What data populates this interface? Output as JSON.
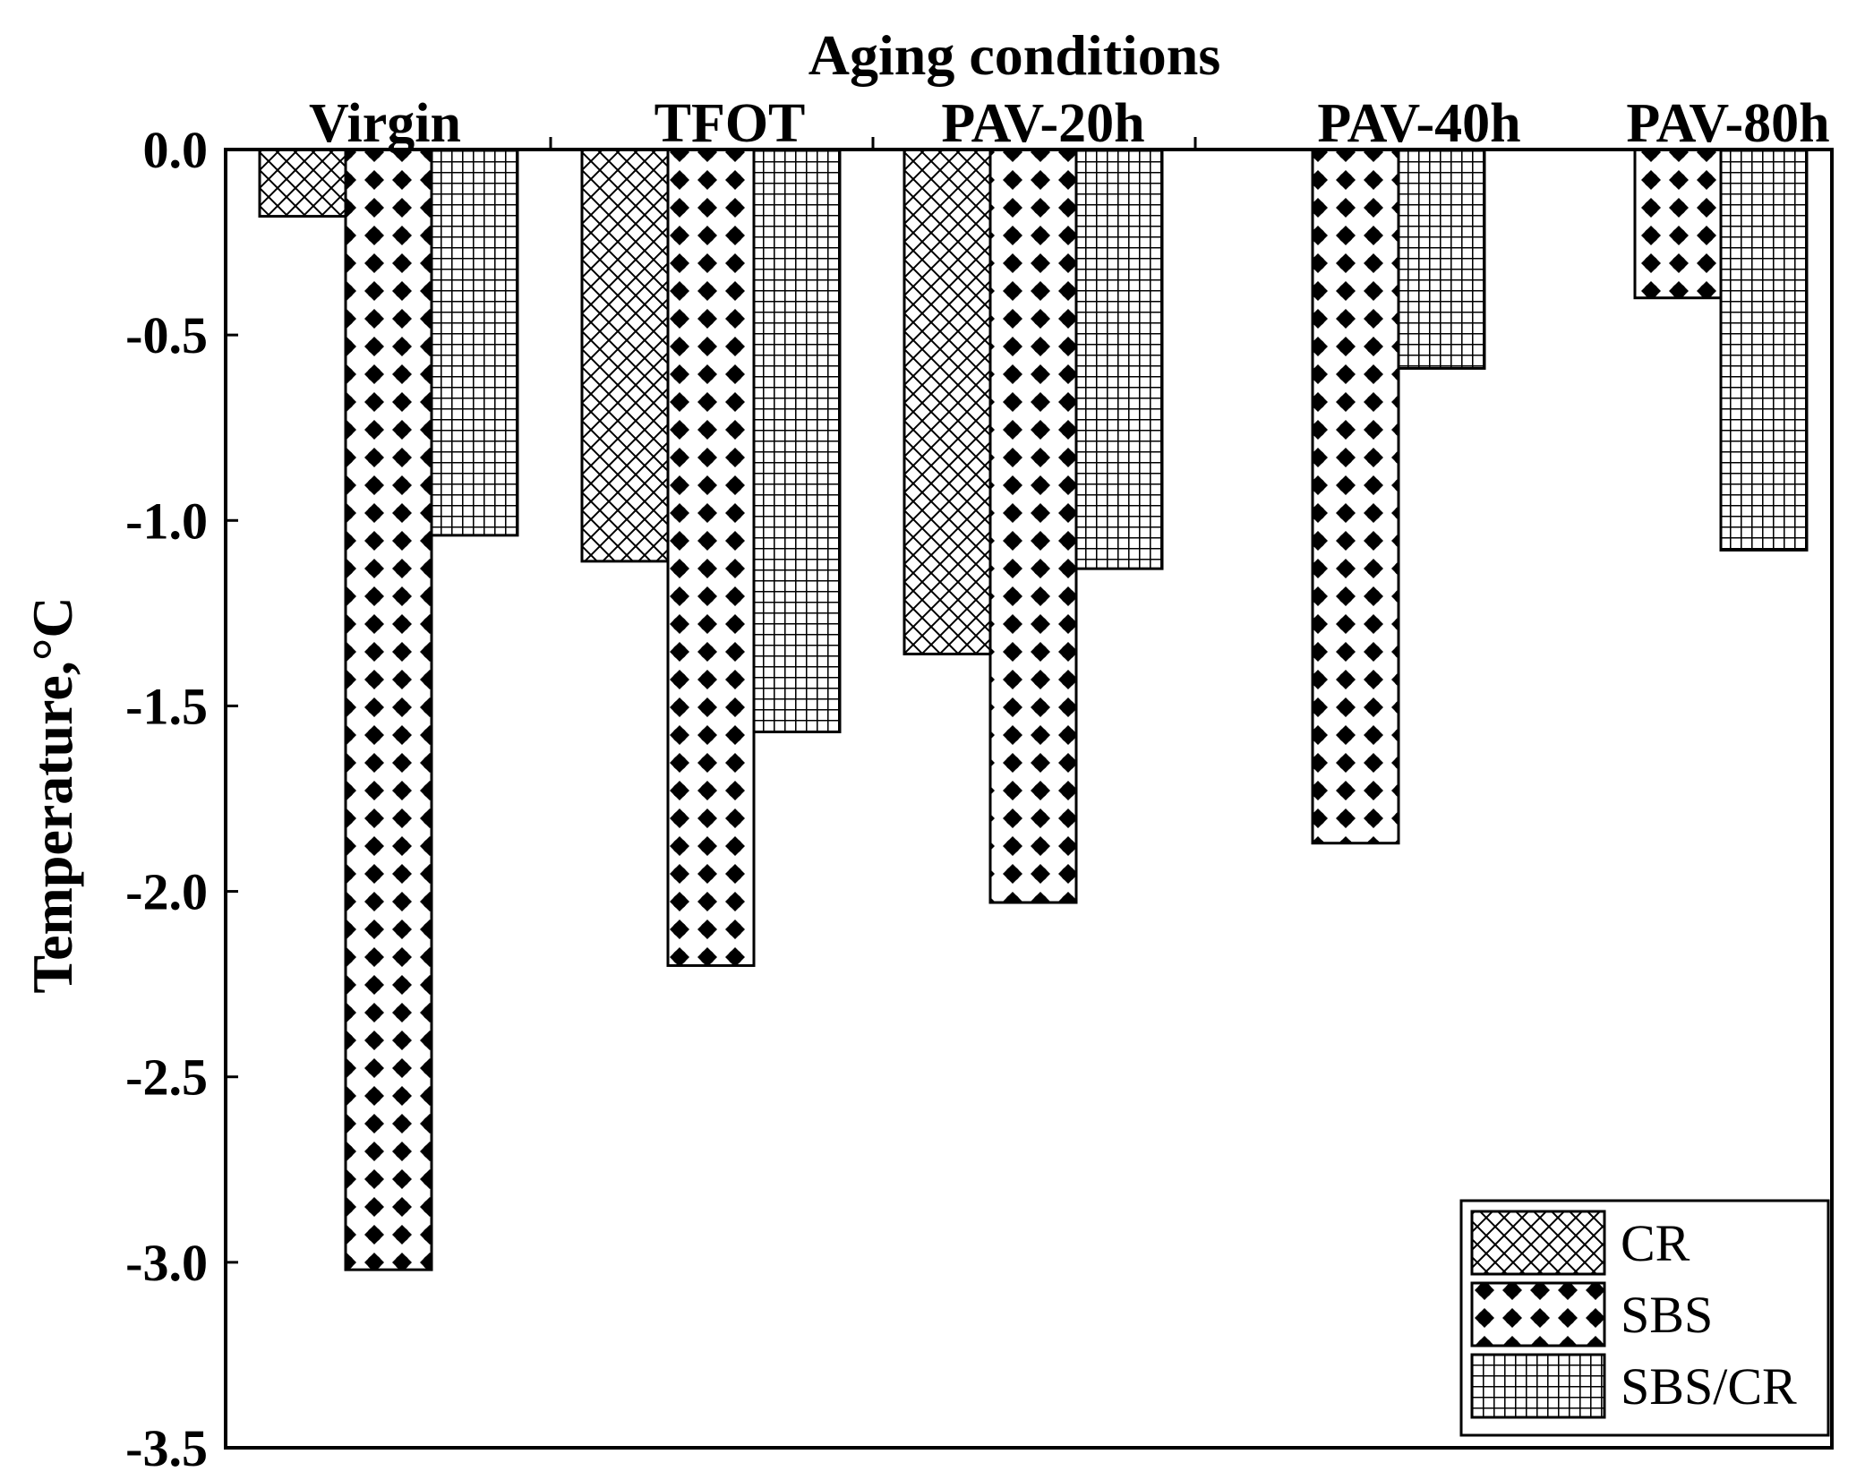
{
  "chart_data": {
    "type": "bar",
    "title": "",
    "xlabel": "Aging conditions",
    "ylabel": "Temperature,°C",
    "x_axis_position": "top",
    "categories": [
      "Virgin",
      "TFOT",
      "PAV-20h",
      "PAV-40h",
      "PAV-80h"
    ],
    "series": [
      {
        "name": "CR",
        "pattern": "crosshatch",
        "values": [
          -0.18,
          -1.11,
          -1.36,
          null,
          null
        ]
      },
      {
        "name": "SBS",
        "pattern": "diamond-dots",
        "values": [
          -3.02,
          -2.2,
          -2.03,
          -1.87,
          -0.4
        ]
      },
      {
        "name": "SBS/CR",
        "pattern": "grid",
        "values": [
          -1.04,
          -1.57,
          -1.13,
          -0.59,
          -1.08
        ]
      }
    ],
    "ylim": [
      -3.5,
      0.0
    ],
    "yticks": [
      "0.0",
      "-0.5",
      "-1.0",
      "-1.5",
      "-2.0",
      "-2.5",
      "-3.0",
      "-3.5"
    ],
    "grid": false,
    "legend_position": "bottom-right",
    "colors": {
      "bar_fill": "#ffffff",
      "pattern": "#000000",
      "axis": "#000000"
    }
  }
}
